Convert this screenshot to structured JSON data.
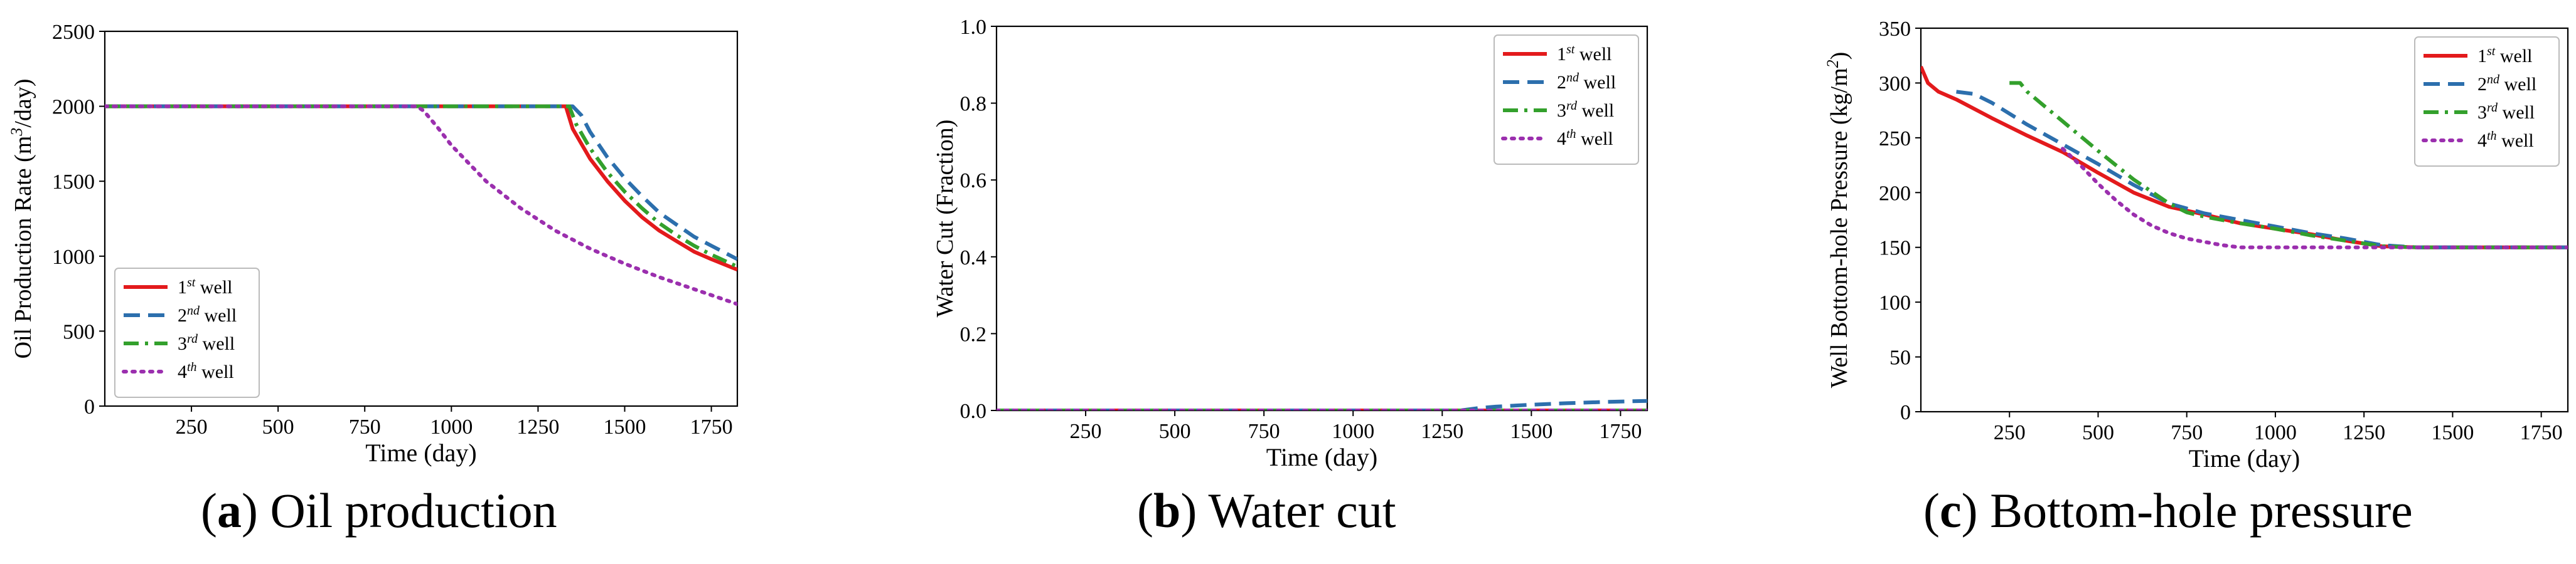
{
  "captions": [
    {
      "letter": "a",
      "text": "Oil production"
    },
    {
      "letter": "b",
      "text": "Water cut"
    },
    {
      "letter": "c",
      "text": "Bottom-hole pressure"
    }
  ],
  "series_styles": [
    {
      "key": "w1",
      "label_base": "1",
      "label_sup": "st",
      "label_tail": " well",
      "color": "#e31a1c",
      "dash": "solid"
    },
    {
      "key": "w2",
      "label_base": "2",
      "label_sup": "nd",
      "label_tail": " well",
      "color": "#2c6fad",
      "dash": "dashed"
    },
    {
      "key": "w3",
      "label_base": "3",
      "label_sup": "rd",
      "label_tail": " well",
      "color": "#33a02c",
      "dash": "dashdot"
    },
    {
      "key": "w4",
      "label_base": "4",
      "label_sup": "th",
      "label_tail": " well",
      "color": "#9b2fae",
      "dash": "dotted"
    }
  ],
  "chart_data": [
    {
      "id": "oil",
      "type": "line",
      "title": "",
      "xlabel": "Time (day)",
      "ylabel": "Oil Production Rate (m3/day)",
      "ylabel_base": "Oil Production Rate (m",
      "ylabel_sup": "3",
      "ylabel_tail": "/day)",
      "xlim": [
        0,
        1825
      ],
      "ylim": [
        0,
        2500
      ],
      "xticks": [
        250,
        500,
        750,
        1000,
        1250,
        1500,
        1750
      ],
      "yticks": [
        0,
        500,
        1000,
        1500,
        2000,
        2500
      ],
      "ytick_decimals": 0,
      "legend_position": "lower-left",
      "series": [
        {
          "key": "w1",
          "x": [
            0,
            1300,
            1330,
            1350,
            1400,
            1450,
            1500,
            1550,
            1600,
            1650,
            1700,
            1750,
            1825
          ],
          "y": [
            2000,
            2000,
            2000,
            1850,
            1650,
            1500,
            1370,
            1260,
            1170,
            1100,
            1030,
            980,
            910
          ]
        },
        {
          "key": "w2",
          "x": [
            0,
            1330,
            1350,
            1375,
            1400,
            1450,
            1500,
            1550,
            1600,
            1650,
            1700,
            1750,
            1825
          ],
          "y": [
            2000,
            2000,
            2000,
            1940,
            1830,
            1660,
            1520,
            1400,
            1290,
            1210,
            1130,
            1070,
            980
          ]
        },
        {
          "key": "w3",
          "x": [
            0,
            1310,
            1340,
            1360,
            1400,
            1450,
            1500,
            1550,
            1600,
            1650,
            1700,
            1750,
            1825
          ],
          "y": [
            2000,
            2000,
            2000,
            1880,
            1720,
            1560,
            1430,
            1320,
            1220,
            1140,
            1070,
            1010,
            930
          ]
        },
        {
          "key": "w4",
          "x": [
            0,
            900,
            920,
            960,
            1000,
            1100,
            1200,
            1300,
            1400,
            1500,
            1600,
            1700,
            1825
          ],
          "y": [
            2000,
            2000,
            1970,
            1860,
            1740,
            1500,
            1320,
            1170,
            1050,
            950,
            860,
            780,
            680
          ]
        }
      ]
    },
    {
      "id": "water",
      "type": "line",
      "title": "",
      "xlabel": "Time (day)",
      "ylabel": "Water Cut (Fraction)",
      "xlim": [
        0,
        1825
      ],
      "ylim": [
        0,
        1.0
      ],
      "xticks": [
        250,
        500,
        750,
        1000,
        1250,
        1500,
        1750
      ],
      "yticks": [
        0.0,
        0.2,
        0.4,
        0.6,
        0.8,
        1.0
      ],
      "ytick_decimals": 1,
      "legend_position": "upper-right",
      "series": [
        {
          "key": "w1",
          "x": [
            0,
            1825
          ],
          "y": [
            0,
            0
          ]
        },
        {
          "key": "w2",
          "x": [
            0,
            1300,
            1350,
            1400,
            1500,
            1600,
            1700,
            1825
          ],
          "y": [
            0,
            0,
            0.006,
            0.01,
            0.015,
            0.019,
            0.022,
            0.025
          ]
        },
        {
          "key": "w3",
          "x": [
            0,
            1825
          ],
          "y": [
            0,
            0
          ]
        },
        {
          "key": "w4",
          "x": [
            0,
            1825
          ],
          "y": [
            0,
            0
          ]
        }
      ]
    },
    {
      "id": "bhp",
      "type": "line",
      "title": "",
      "xlabel": "Time (day)",
      "ylabel": "Well Bottom-hole Pressure (kg/m2)",
      "ylabel_base": "Well Bottom-hole Pressure (kg/m",
      "ylabel_sup": "2",
      "ylabel_tail": ")",
      "xlim": [
        0,
        1825
      ],
      "ylim": [
        0,
        350
      ],
      "xticks": [
        250,
        500,
        750,
        1000,
        1250,
        1500,
        1750
      ],
      "yticks": [
        0,
        50,
        100,
        150,
        200,
        250,
        300,
        350
      ],
      "ytick_decimals": 0,
      "legend_position": "upper-right",
      "series": [
        {
          "key": "w1",
          "x": [
            0,
            20,
            50,
            100,
            200,
            300,
            400,
            500,
            600,
            700,
            800,
            900,
            1000,
            1100,
            1200,
            1300,
            1400,
            1825
          ],
          "y": [
            315,
            300,
            292,
            285,
            268,
            252,
            237,
            218,
            200,
            187,
            180,
            172,
            167,
            162,
            156,
            151,
            150,
            150
          ]
        },
        {
          "key": "w2",
          "x": [
            100,
            150,
            200,
            300,
            400,
            500,
            600,
            700,
            800,
            900,
            1000,
            1100,
            1200,
            1300,
            1400,
            1825
          ],
          "y": [
            292,
            290,
            282,
            262,
            244,
            226,
            207,
            190,
            181,
            175,
            169,
            163,
            158,
            152,
            150,
            150
          ]
        },
        {
          "key": "w3",
          "x": [
            250,
            280,
            300,
            400,
            500,
            600,
            700,
            750,
            800,
            900,
            1000,
            1100,
            1200,
            1300,
            1400,
            1825
          ],
          "y": [
            300,
            300,
            292,
            265,
            238,
            212,
            190,
            182,
            178,
            172,
            167,
            161,
            156,
            151,
            150,
            150
          ]
        },
        {
          "key": "w4",
          "x": [
            400,
            450,
            500,
            550,
            600,
            650,
            700,
            750,
            800,
            850,
            900,
            1000,
            1825
          ],
          "y": [
            240,
            225,
            208,
            193,
            180,
            170,
            163,
            158,
            155,
            152,
            150,
            150,
            150
          ]
        }
      ]
    }
  ]
}
